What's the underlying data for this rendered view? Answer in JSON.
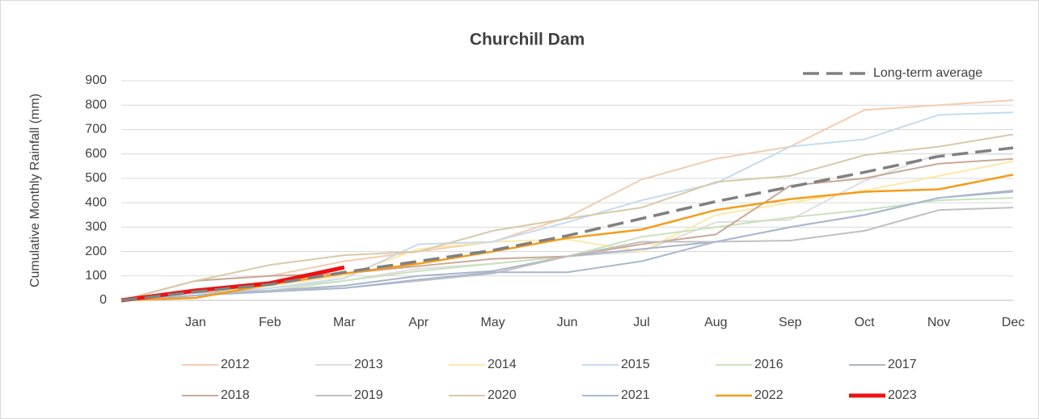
{
  "chart_data": {
    "type": "line",
    "title": "Churchill Dam",
    "y_label": "Cumulative Monthly Rainfall (mm)",
    "categories": [
      null,
      "Jan",
      "Feb",
      "Mar",
      "Apr",
      "May",
      "Jun",
      "Jul",
      "Aug",
      "Sep",
      "Oct",
      "Nov",
      "Dec"
    ],
    "ylim": [
      0,
      900
    ],
    "yticks": [
      0,
      100,
      200,
      300,
      400,
      500,
      600,
      700,
      800,
      900
    ],
    "grid": true,
    "series": [
      {
        "name": "2012",
        "color": "#f4ccb0",
        "values": [
          0,
          80,
          100,
          160,
          200,
          240,
          340,
          495,
          580,
          630,
          780,
          800,
          820
        ]
      },
      {
        "name": "2013",
        "color": "#dedede",
        "values": [
          0,
          30,
          50,
          80,
          130,
          150,
          180,
          200,
          320,
          330,
          490,
          600,
          600
        ]
      },
      {
        "name": "2014",
        "color": "#fde9a8",
        "values": [
          0,
          30,
          60,
          100,
          210,
          240,
          250,
          200,
          350,
          400,
          450,
          510,
          570
        ]
      },
      {
        "name": "2015",
        "color": "#c5dbef",
        "values": [
          0,
          20,
          50,
          90,
          230,
          240,
          320,
          410,
          480,
          630,
          660,
          760,
          770
        ]
      },
      {
        "name": "2016",
        "color": "#c9e2bd",
        "values": [
          0,
          20,
          40,
          80,
          120,
          150,
          180,
          260,
          300,
          340,
          370,
          410,
          420
        ]
      },
      {
        "name": "2017",
        "color": "#aab4c8",
        "values": [
          0,
          20,
          40,
          60,
          100,
          120,
          180,
          210,
          240,
          300,
          350,
          420,
          450
        ]
      },
      {
        "name": "2018",
        "color": "#c9a898",
        "values": [
          0,
          80,
          100,
          110,
          140,
          170,
          180,
          230,
          270,
          470,
          500,
          560,
          580
        ]
      },
      {
        "name": "2019",
        "color": "#c0c0c0",
        "values": [
          0,
          30,
          40,
          50,
          80,
          110,
          180,
          240,
          240,
          245,
          285,
          370,
          380
        ]
      },
      {
        "name": "2020",
        "color": "#d9c9a8",
        "values": [
          0,
          80,
          145,
          185,
          200,
          285,
          335,
          380,
          485,
          510,
          595,
          630,
          680
        ]
      },
      {
        "name": "2021",
        "color": "#a8b8d0",
        "values": [
          0,
          20,
          35,
          50,
          85,
          115,
          115,
          160,
          240,
          300,
          350,
          420,
          445
        ]
      },
      {
        "name": "2022",
        "color": "#f59c1a",
        "width": 2.5,
        "values": [
          0,
          10,
          65,
          110,
          150,
          200,
          255,
          290,
          370,
          415,
          445,
          455,
          515
        ]
      },
      {
        "name": "2023",
        "color": "#ee1111",
        "width": 5,
        "values": [
          0,
          40,
          70,
          135,
          null,
          null,
          null,
          null,
          null,
          null,
          null,
          null,
          null
        ]
      },
      {
        "name": "Long-term average",
        "color": "#808080",
        "width": 3.5,
        "dashed": true,
        "values": [
          0,
          35,
          65,
          115,
          160,
          205,
          265,
          335,
          405,
          465,
          525,
          590,
          625
        ]
      }
    ]
  }
}
